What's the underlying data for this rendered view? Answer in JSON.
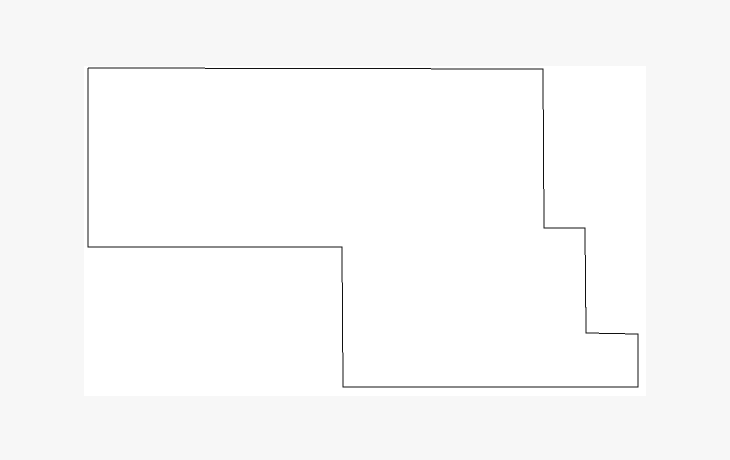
{
  "diagram": {
    "background_color": "#f7f7f7",
    "canvas_color": "#ffffff",
    "stroke_color": "#111111",
    "shape": "rectilinear-outline"
  }
}
